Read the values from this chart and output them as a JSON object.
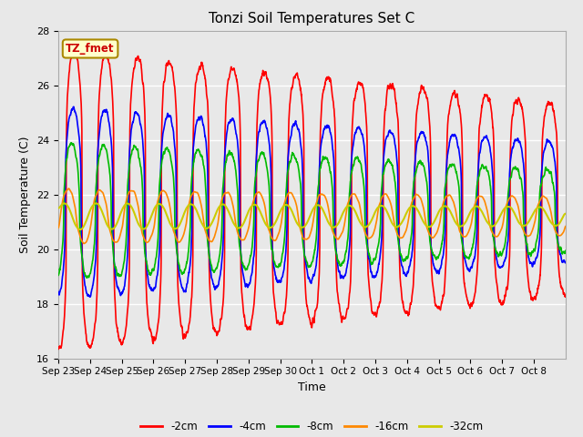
{
  "title": "Tonzi Soil Temperatures Set C",
  "xlabel": "Time",
  "ylabel": "Soil Temperature (C)",
  "ylim": [
    16,
    28
  ],
  "yticks": [
    16,
    18,
    20,
    22,
    24,
    26,
    28
  ],
  "xtick_labels": [
    "Sep 23",
    "Sep 24",
    "Sep 25",
    "Sep 26",
    "Sep 27",
    "Sep 28",
    "Sep 29",
    "Sep 30",
    "Oct 1",
    "Oct 2",
    "Oct 3",
    "Oct 4",
    "Oct 5",
    "Oct 6",
    "Oct 7",
    "Oct 8"
  ],
  "legend_labels": [
    "-2cm",
    "-4cm",
    "-8cm",
    "-16cm",
    "-32cm"
  ],
  "line_colors": [
    "#ff0000",
    "#0000ff",
    "#00bb00",
    "#ff8800",
    "#cccc00"
  ],
  "annotation_text": "TZ_fmet",
  "annotation_box_color": "#ffffcc",
  "annotation_box_edge": "#aa8800",
  "background_color": "#e8e8e8",
  "grid_color": "#ffffff",
  "n_days": 16,
  "pts_per_day": 144
}
